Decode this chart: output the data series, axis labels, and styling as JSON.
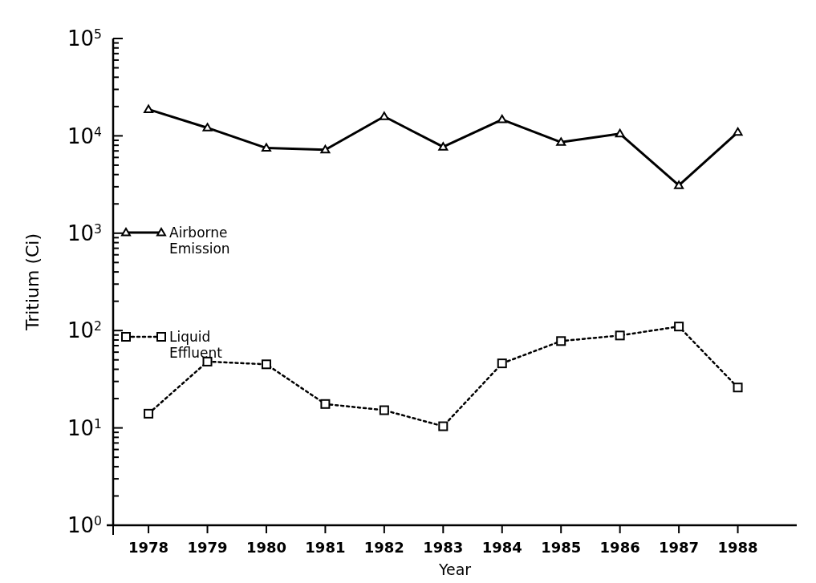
{
  "chart_data": {
    "type": "line",
    "xlabel": "Year",
    "ylabel": "Tritium (Ci)",
    "log": "y",
    "x": [
      1978,
      1979,
      1980,
      1981,
      1982,
      1983,
      1984,
      1985,
      1986,
      1987,
      1988
    ],
    "xlim": [
      1977.4,
      1989
    ],
    "xticks": [
      1978,
      1979,
      1980,
      1981,
      1982,
      1983,
      1984,
      1985,
      1986,
      1987,
      1988
    ],
    "ylim": [
      1,
      100000
    ],
    "yticks": [
      {
        "value": 1,
        "label": "10$^{0}$"
      },
      {
        "value": 2,
        "label": null
      },
      {
        "value": 3,
        "label": null
      },
      {
        "value": 4,
        "label": null
      },
      {
        "value": 5,
        "label": null
      },
      {
        "value": 6,
        "label": null
      },
      {
        "value": 7,
        "label": null
      },
      {
        "value": 8,
        "label": null
      },
      {
        "value": 9,
        "label": null
      },
      {
        "value": 10,
        "label": "10$^{1}$"
      },
      {
        "value": 20,
        "label": null
      },
      {
        "value": 30,
        "label": null
      },
      {
        "value": 40,
        "label": null
      },
      {
        "value": 50,
        "label": null
      },
      {
        "value": 60,
        "label": null
      },
      {
        "value": 70,
        "label": null
      },
      {
        "value": 80,
        "label": null
      },
      {
        "value": 90,
        "label": null
      },
      {
        "value": 100,
        "label": "10$^{2}$"
      },
      {
        "value": 200,
        "label": null
      },
      {
        "value": 300,
        "label": null
      },
      {
        "value": 400,
        "label": null
      },
      {
        "value": 500,
        "label": null
      },
      {
        "value": 600,
        "label": null
      },
      {
        "value": 700,
        "label": null
      },
      {
        "value": 800,
        "label": null
      },
      {
        "value": 900,
        "label": null
      },
      {
        "value": 1000,
        "label": "10$^{3}$"
      },
      {
        "value": 2000,
        "label": null
      },
      {
        "value": 3000,
        "label": null
      },
      {
        "value": 4000,
        "label": null
      },
      {
        "value": 5000,
        "label": null
      },
      {
        "value": 6000,
        "label": null
      },
      {
        "value": 7000,
        "label": null
      },
      {
        "value": 8000,
        "label": null
      },
      {
        "value": 9000,
        "label": null
      },
      {
        "value": 10000,
        "label": "10$^{4}$"
      },
      {
        "value": 20000,
        "label": null
      },
      {
        "value": 30000,
        "label": null
      },
      {
        "value": 40000,
        "label": null
      },
      {
        "value": 50000,
        "label": null
      },
      {
        "value": 60000,
        "label": null
      },
      {
        "value": 70000,
        "label": null
      },
      {
        "value": 80000,
        "label": null
      },
      {
        "value": 90000,
        "label": null
      },
      {
        "value": 100000,
        "label": "10$^{5}$"
      }
    ],
    "grid": false,
    "legend": "left",
    "series": [
      {
        "name": "Airborne Emission",
        "color": "#000000",
        "marker": "triangle",
        "line_style": "solid",
        "values": [
          18700,
          12100,
          7500,
          7200,
          15800,
          7700,
          14700,
          8600,
          10500,
          3100,
          10900
        ]
      },
      {
        "name": "Liquid Effluent",
        "color": "#000000",
        "marker": "square",
        "line_style": "dotted",
        "values": [
          14,
          48,
          45,
          17.6,
          15.2,
          10.4,
          46,
          78,
          89,
          110,
          26
        ]
      }
    ]
  }
}
